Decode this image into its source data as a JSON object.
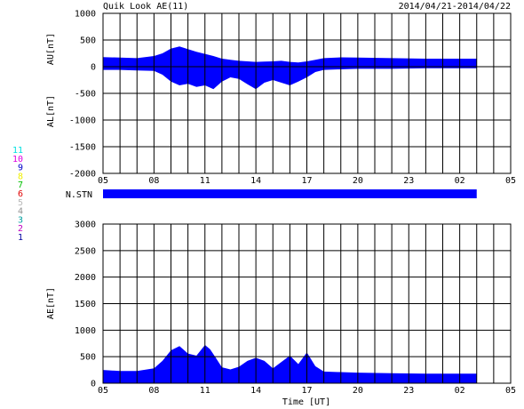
{
  "header": {
    "title": "Quik Look AE(11)",
    "date_range": "2014/04/21-2014/04/22"
  },
  "station_key": [
    {
      "label": "11",
      "color": "#00e0e0"
    },
    {
      "label": "10",
      "color": "#e000e0"
    },
    {
      "label": "9",
      "color": "#0000c8"
    },
    {
      "label": "8",
      "color": "#f0f000"
    },
    {
      "label": "7",
      "color": "#00c000"
    },
    {
      "label": "6",
      "color": "#e00000"
    },
    {
      "label": "5",
      "color": "#b8b8b8"
    },
    {
      "label": "4",
      "color": "#909090"
    },
    {
      "label": "3",
      "color": "#00a0a0"
    },
    {
      "label": "2",
      "color": "#c000c0"
    },
    {
      "label": "1",
      "color": "#0000a0"
    }
  ],
  "colors": {
    "fill": "#0000ff",
    "grid": "#000000",
    "text": "#000000"
  },
  "chart_data": [
    {
      "type": "area",
      "panel": "AU/AL",
      "ylabel_upper": "AU[nT]",
      "ylabel_lower": "AL[nT]",
      "ylim": [
        -2000,
        1000
      ],
      "yticks": [
        1000,
        500,
        0,
        -500,
        -1000,
        -1500,
        -2000
      ],
      "ytick_labels": [
        "1000",
        "500",
        "0",
        "-500",
        "-1000",
        "-1500",
        "-2000"
      ],
      "x_range_hours": [
        5,
        29
      ],
      "xticks_hours": [
        5,
        8,
        11,
        14,
        17,
        20,
        23,
        26,
        29
      ],
      "xtick_labels": [
        "05",
        "08",
        "11",
        "14",
        "17",
        "20",
        "23",
        "02",
        "05"
      ],
      "data_end_hour": 27.0,
      "x_hours": [
        5.0,
        6.0,
        7.0,
        8.0,
        8.5,
        9.0,
        9.5,
        10.0,
        10.5,
        11.0,
        11.5,
        12.0,
        12.5,
        13.0,
        13.5,
        14.0,
        14.5,
        15.0,
        15.5,
        16.0,
        16.5,
        17.0,
        17.5,
        18.0,
        19.0,
        20.0,
        22.0,
        24.0,
        26.0,
        27.0
      ],
      "series": [
        {
          "values": [
            180,
            170,
            160,
            200,
            250,
            340,
            380,
            330,
            280,
            240,
            200,
            150,
            130,
            110,
            100,
            90,
            95,
            100,
            110,
            90,
            80,
            100,
            130,
            160,
            175,
            170,
            160,
            150,
            150,
            150
          ]
        },
        {
          "values": [
            -60,
            -60,
            -70,
            -80,
            -150,
            -280,
            -350,
            -320,
            -380,
            -350,
            -420,
            -280,
            -200,
            -230,
            -330,
            -420,
            -300,
            -250,
            -300,
            -350,
            -280,
            -200,
            -100,
            -60,
            -50,
            -40,
            -40,
            -30,
            -30,
            -30
          ]
        }
      ]
    },
    {
      "type": "bar",
      "panel": "N.STN",
      "label": "N.STN",
      "x_range_hours": [
        5,
        29
      ],
      "data_end_hour": 27.0
    },
    {
      "type": "area",
      "panel": "AE",
      "ylabel": "AE[nT]",
      "xlabel": "Time [UT]",
      "ylim": [
        0,
        3000
      ],
      "yticks": [
        3000,
        2500,
        2000,
        1500,
        1000,
        500,
        0
      ],
      "ytick_labels": [
        "3000",
        "2500",
        "2000",
        "1500",
        "1000",
        "500",
        "0"
      ],
      "x_range_hours": [
        5,
        29
      ],
      "xticks_hours": [
        5,
        8,
        11,
        14,
        17,
        20,
        23,
        26,
        29
      ],
      "xtick_labels": [
        "05",
        "08",
        "11",
        "14",
        "17",
        "20",
        "23",
        "02",
        "05"
      ],
      "data_end_hour": 27.0,
      "x_hours": [
        5.0,
        6.0,
        7.0,
        8.0,
        8.5,
        9.0,
        9.5,
        10.0,
        10.5,
        11.0,
        11.3,
        11.6,
        12.0,
        12.5,
        13.0,
        13.5,
        14.0,
        14.5,
        15.0,
        15.5,
        16.0,
        16.5,
        17.0,
        17.5,
        18.0,
        19.0,
        20.0,
        22.0,
        24.0,
        26.0,
        27.0
      ],
      "series": [
        {
          "values": [
            250,
            230,
            230,
            280,
            420,
            620,
            700,
            560,
            520,
            720,
            640,
            500,
            300,
            260,
            310,
            420,
            480,
            420,
            280,
            400,
            520,
            360,
            580,
            320,
            220,
            210,
            200,
            190,
            180,
            180,
            180
          ]
        }
      ]
    }
  ]
}
